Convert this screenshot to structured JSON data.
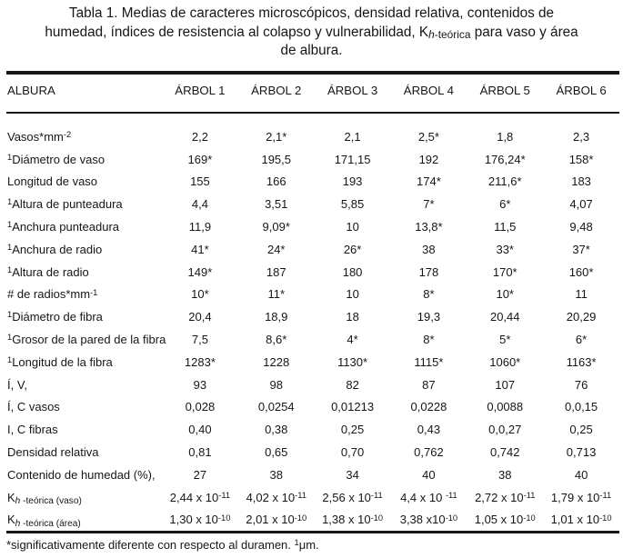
{
  "title": {
    "lines": [
      "Tabla 1. Medias de caracteres microscópicos, densidad relativa, contenidos de",
      "humedad, índices de resistencia al colapso y vulnerabilidad, K~{i}h{/i}-teórica~ para vaso y área",
      "de albura."
    ]
  },
  "table": {
    "columns": [
      "ALBURA",
      "ÁRBOL 1",
      "ÁRBOL 2",
      "ÁRBOL 3",
      "ÁRBOL 4",
      "ÁRBOL 5",
      "ÁRBOL 6"
    ],
    "rows": [
      {
        "label": "Vasos*mm^-2^",
        "values": [
          "2,2",
          "2,1*",
          "2,1",
          "2,5*",
          "1,8",
          "2,3"
        ]
      },
      {
        "label": "^1^Diámetro de vaso",
        "values": [
          "169*",
          "195,5",
          "171,15",
          "192",
          "176,24*",
          "158*"
        ]
      },
      {
        "label": "Longitud de vaso",
        "values": [
          "155",
          "166",
          "193",
          "174*",
          "211,6*",
          "183"
        ]
      },
      {
        "label": "^1^Altura de punteadura",
        "values": [
          "4,4",
          "3,51",
          "5,85",
          "7*",
          "6*",
          "4,07"
        ]
      },
      {
        "label": "^1^Anchura punteadura",
        "values": [
          "11,9",
          "9,09*",
          "10",
          "13,8*",
          "11,5",
          "9,48"
        ]
      },
      {
        "label": "^1^Anchura de radio",
        "values": [
          "41*",
          "24*",
          "26*",
          "38",
          "33*",
          "37*"
        ]
      },
      {
        "label": "^1^Altura de radio",
        "values": [
          "149*",
          "187",
          "180",
          "178",
          "170*",
          "160*"
        ]
      },
      {
        "label": "# de radios*mm^-1^",
        "values": [
          "10*",
          "11*",
          "10",
          "8*",
          "10*",
          "11"
        ]
      },
      {
        "label": "^1^Diámetro de fibra",
        "values": [
          "20,4",
          "18,9",
          "18",
          "19,3",
          "20,44",
          "20,29"
        ]
      },
      {
        "label": "^1^Grosor de la pared de la fibra",
        "values": [
          "7,5",
          "8,6*",
          "4*",
          "8*",
          "5*",
          "6*"
        ]
      },
      {
        "label": "^1^Longitud de la fibra",
        "values": [
          "1283*",
          "1228",
          "1130*",
          "1115*",
          "1060*",
          "1163*"
        ]
      },
      {
        "label": "Í, V,",
        "values": [
          "93",
          "98",
          "82",
          "87",
          "107",
          "76"
        ]
      },
      {
        "label": "Í, C vasos",
        "values": [
          "0,028",
          "0,0254",
          "0,01213",
          "0,0228",
          "0,0088",
          "0,0,15"
        ]
      },
      {
        "label": "I, C fibras",
        "values": [
          "0,40",
          "0,38",
          "0,25",
          "0,43",
          "0,0,27",
          "0,25"
        ]
      },
      {
        "label": "Densidad relativa",
        "values": [
          "0,81",
          "0,65",
          "0,70",
          "0,762",
          "0,742",
          "0,713"
        ]
      },
      {
        "label": "Contenido de humedad (%),",
        "values": [
          "27",
          "38",
          "34",
          "40",
          "38",
          "40"
        ]
      },
      {
        "label": "K~{i}h{/i} -teórica (vaso)~",
        "values": [
          "2,44 x 10^-11^",
          "4,02 x 10^-11^",
          "2,56 x 10^-11^",
          "4,4 x 10 ^-11^",
          "2,72 x 10^-11^",
          "1,79 x 10^-11^"
        ]
      },
      {
        "label": "K~{i}h{/i} -teórica (área)~",
        "values": [
          "1,30 x 10^-10^",
          "2,01 x 10^-10^",
          "1,38 x 10^-10^",
          "3,38 x10^-10^",
          "1,05 x 10^-10^",
          "1,01 x 10^-10^"
        ]
      }
    ]
  },
  "footnote": "*significativamente diferente con respecto al duramen. ^1^μm.",
  "colors": {
    "text": "#161616",
    "background": "#ffffff",
    "rule": "#161616"
  }
}
